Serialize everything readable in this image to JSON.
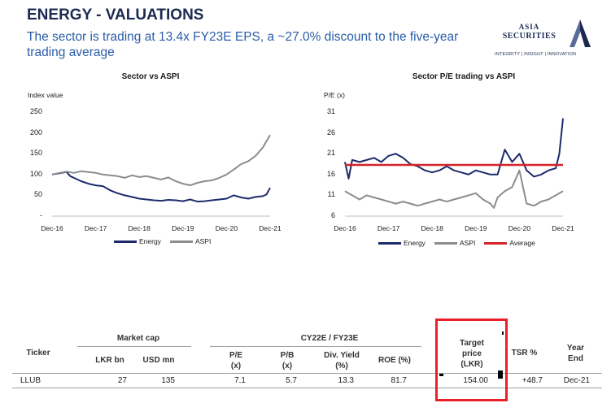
{
  "header": {
    "title": "ENERGY - VALUATIONS",
    "subtitle": "The sector is trading at 13.4x FY23E EPS, a ~27.0% discount to the five-year trading average"
  },
  "logo": {
    "line1": "ASIA",
    "line2": "SECURITIES",
    "tagline": "INTEGRITY | INSIGHT | INNOVATION"
  },
  "colors": {
    "navy": "#1c2a6b",
    "grey": "#8c8c8c",
    "red": "#d4232a",
    "title": "#1c2a52",
    "subtitle": "#2a5da8"
  },
  "chart_data": [
    {
      "type": "line",
      "title": "Sector vs ASPI",
      "ylabel": "Index value",
      "ylim": [
        0,
        250
      ],
      "yticks": [
        "250",
        "200",
        "150",
        "100",
        "50",
        "-"
      ],
      "ytick_values": [
        250,
        200,
        150,
        100,
        50,
        0
      ],
      "xticks": [
        "Dec-16",
        "Dec-17",
        "Dec-18",
        "Dec-19",
        "Dec-20",
        "Dec-21"
      ],
      "xlim": [
        0,
        60
      ],
      "series": [
        {
          "name": "Energy",
          "color": "#1c2a6b",
          "x": [
            0,
            2,
            4,
            5,
            6,
            8,
            10,
            12,
            14,
            16,
            18,
            20,
            22,
            24,
            26,
            28,
            30,
            32,
            34,
            36,
            38,
            40,
            42,
            44,
            46,
            48,
            50,
            52,
            54,
            56,
            58,
            59,
            60
          ],
          "y": [
            100,
            103,
            106,
            96,
            92,
            84,
            78,
            74,
            72,
            62,
            55,
            50,
            46,
            42,
            40,
            38,
            37,
            39,
            38,
            36,
            40,
            35,
            36,
            38,
            40,
            42,
            50,
            45,
            42,
            46,
            48,
            52,
            68
          ]
        },
        {
          "name": "ASPI",
          "color": "#8c8c8c",
          "x": [
            0,
            2,
            4,
            6,
            8,
            10,
            12,
            14,
            16,
            18,
            20,
            22,
            24,
            26,
            28,
            30,
            32,
            34,
            36,
            38,
            40,
            42,
            44,
            46,
            48,
            50,
            52,
            54,
            56,
            58,
            59,
            60
          ],
          "y": [
            100,
            104,
            107,
            104,
            108,
            106,
            104,
            100,
            98,
            96,
            92,
            98,
            94,
            96,
            92,
            88,
            93,
            84,
            78,
            74,
            80,
            84,
            86,
            92,
            100,
            112,
            125,
            132,
            145,
            165,
            180,
            195
          ]
        }
      ]
    },
    {
      "type": "line",
      "title": "Sector P/E trading vs ASPI",
      "ylabel": "P/E (x)",
      "ylim": [
        6,
        31
      ],
      "yticks": [
        "31",
        "26",
        "21",
        "16",
        "11",
        "6"
      ],
      "ytick_values": [
        31,
        26,
        21,
        16,
        11,
        6
      ],
      "xticks": [
        "Dec-16",
        "Dec-17",
        "Dec-18",
        "Dec-19",
        "Dec-20",
        "Dec-21"
      ],
      "xlim": [
        0,
        60
      ],
      "series": [
        {
          "name": "Energy",
          "color": "#1c2a6b",
          "x": [
            0,
            1,
            2,
            4,
            6,
            8,
            10,
            12,
            14,
            16,
            18,
            20,
            22,
            24,
            26,
            28,
            30,
            32,
            34,
            36,
            38,
            40,
            42,
            44,
            46,
            48,
            50,
            52,
            54,
            56,
            58,
            59,
            60
          ],
          "y": [
            19,
            15,
            19.5,
            19,
            19.5,
            20,
            19,
            20.5,
            21,
            20,
            18.5,
            18,
            17,
            16.5,
            17,
            18,
            17,
            16.5,
            16,
            17,
            16.5,
            16,
            16,
            22,
            19,
            21,
            17,
            15.5,
            16,
            17,
            17.5,
            21,
            29.5
          ]
        },
        {
          "name": "ASPI",
          "color": "#8c8c8c",
          "x": [
            0,
            2,
            4,
            6,
            8,
            10,
            12,
            14,
            16,
            18,
            20,
            22,
            24,
            26,
            28,
            30,
            32,
            34,
            36,
            38,
            40,
            41,
            42,
            44,
            46,
            48,
            50,
            52,
            54,
            56,
            58,
            60
          ],
          "y": [
            12,
            11,
            10,
            11,
            10.5,
            10,
            9.5,
            9,
            9.5,
            9,
            8.5,
            9,
            9.5,
            10,
            9.5,
            10,
            10.5,
            11,
            11.5,
            10,
            9,
            8,
            10.5,
            12,
            13,
            17,
            9,
            8.5,
            9.5,
            10,
            11,
            12
          ]
        },
        {
          "name": "Average",
          "color": "#d4232a",
          "x": [
            0,
            60
          ],
          "y": [
            18.3,
            18.3
          ]
        }
      ]
    }
  ],
  "table": {
    "group_market_cap": "Market cap",
    "group_cy": "CY22E / FY23E",
    "col_ticker": "Ticker",
    "col_lkr_bn": "LKR bn",
    "col_usd_mn": "USD mn",
    "col_pe": [
      "P/E",
      "(x)"
    ],
    "col_pb": [
      "P/B",
      "(x)"
    ],
    "col_div": [
      "Div. Yield",
      "(%)"
    ],
    "col_roe": "ROE (%)",
    "col_target": [
      "Target",
      "price",
      "(LKR)"
    ],
    "col_tsr": "TSR %",
    "col_year": [
      "Year",
      "End"
    ],
    "rows": [
      {
        "ticker": "LLUB",
        "lkr_bn": "27",
        "usd_mn": "135",
        "pe": "7.1",
        "pb": "5.7",
        "div_yield": "13.3",
        "roe": "81.7",
        "target_price": "154.00",
        "tsr": "+48.7",
        "year_end": "Dec-21"
      }
    ]
  }
}
